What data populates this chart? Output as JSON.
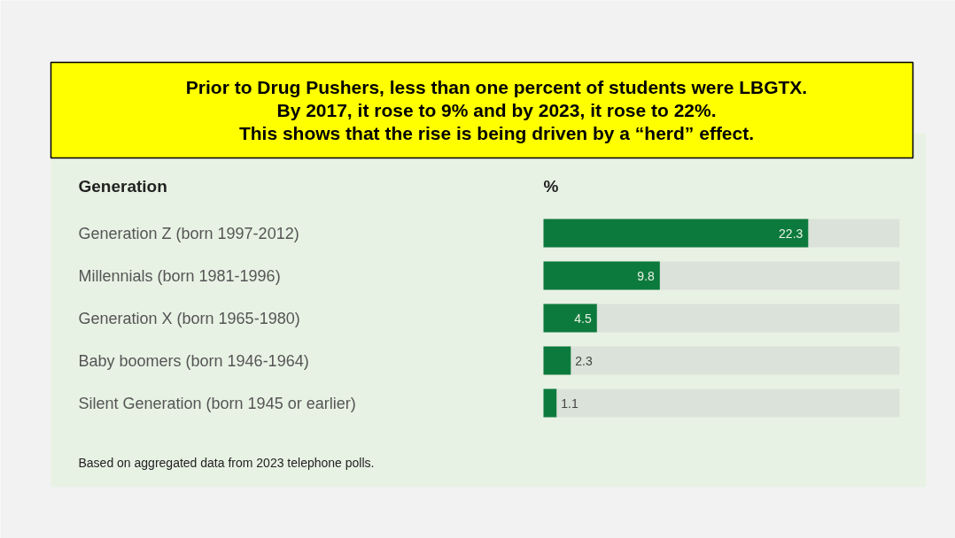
{
  "chart_data": {
    "type": "bar",
    "orientation": "horizontal",
    "title": "Prior to Drug Pushers, less than one percent of students were LBGTX.\nBy 2017, it rose to 9% and by 2023, it rose to 22%.\nThis shows that the rise is being driven by a “herd” effect.",
    "ylabel": "Generation",
    "xlabel": "%",
    "categories": [
      "Generation Z (born 1997-2012)",
      "Millennials (born 1981-1996)",
      "Generation X (born 1965-1980)",
      "Baby boomers (born 1946-1964)",
      "Silent Generation (born 1945 or earlier)"
    ],
    "values": [
      22.3,
      9.8,
      4.5,
      2.3,
      1.1
    ],
    "color": "#0d7a3d",
    "xlim": [
      0,
      30
    ],
    "tick_labels": false,
    "data_labels": true,
    "annotations": [
      "Based on aggregated data from 2023 telephone polls."
    ]
  }
}
